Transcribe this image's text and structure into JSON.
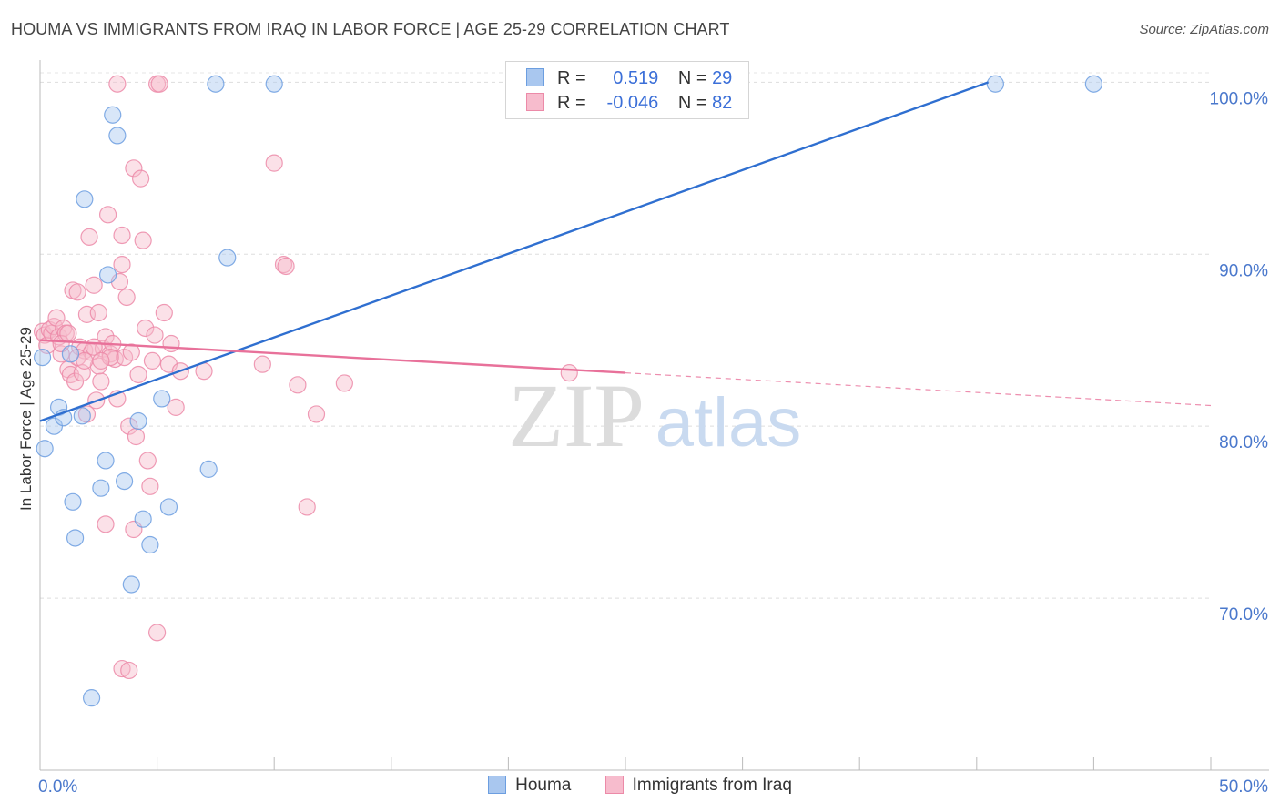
{
  "title": "HOUMA VS IMMIGRANTS FROM IRAQ IN LABOR FORCE | AGE 25-29 CORRELATION CHART",
  "source": "Source: ZipAtlas.com",
  "watermark": {
    "zip": "ZIP",
    "atlas": "atlas"
  },
  "legend_stats": [
    {
      "r_label": "R =",
      "r_value": "0.519",
      "n_label": "N =",
      "n_value": "29",
      "color": "#a9c7ef",
      "border": "#6c9ee0"
    },
    {
      "r_label": "R =",
      "r_value": "-0.046",
      "n_label": "N =",
      "n_value": "82",
      "color": "#f7bccd",
      "border": "#ec8aa8"
    }
  ],
  "bottom_legend": [
    {
      "label": "Houma",
      "color": "#a9c7ef",
      "border": "#6c9ee0"
    },
    {
      "label": "Immigrants from Iraq",
      "color": "#f7bccd",
      "border": "#ec8aa8"
    }
  ],
  "chart_data": {
    "type": "scatter",
    "title": "HOUMA VS IMMIGRANTS FROM IRAQ IN LABOR FORCE | AGE 25-29 CORRELATION CHART",
    "xlabel": "",
    "ylabel": "In Labor Force | Age 25-29",
    "xlim": [
      0,
      50
    ],
    "ylim": [
      60,
      101.5
    ],
    "x_tick_labels": [
      "0.0%",
      "50.0%"
    ],
    "y_ticks": [
      {
        "value": 100,
        "label": "100.0%"
      },
      {
        "value": 90,
        "label": "90.0%"
      },
      {
        "value": 80,
        "label": "80.0%"
      },
      {
        "value": 70,
        "label": "70.0%"
      }
    ],
    "series": [
      {
        "name": "Houma",
        "color": "#6c9ee0",
        "fill": "#a9c7ef",
        "line_color": "#2f6fd0",
        "trend": {
          "x0": 0,
          "y0": 80.3,
          "x1": 40.5,
          "y1": 100.0,
          "solid_to": 40.5
        },
        "points": [
          [
            0.1,
            84.0
          ],
          [
            0.2,
            78.7
          ],
          [
            0.6,
            80.0
          ],
          [
            0.8,
            81.1
          ],
          [
            1.0,
            80.5
          ],
          [
            1.3,
            84.2
          ],
          [
            1.4,
            75.6
          ],
          [
            1.5,
            73.5
          ],
          [
            1.8,
            80.6
          ],
          [
            1.9,
            93.2
          ],
          [
            2.2,
            64.2
          ],
          [
            2.6,
            76.4
          ],
          [
            2.8,
            78.0
          ],
          [
            2.9,
            88.8
          ],
          [
            3.1,
            98.1
          ],
          [
            3.3,
            96.9
          ],
          [
            3.6,
            76.8
          ],
          [
            3.9,
            70.8
          ],
          [
            4.2,
            80.3
          ],
          [
            4.4,
            74.6
          ],
          [
            4.7,
            73.1
          ],
          [
            5.2,
            81.6
          ],
          [
            5.5,
            75.3
          ],
          [
            7.2,
            77.5
          ],
          [
            7.5,
            99.9
          ],
          [
            8.0,
            89.8
          ],
          [
            10.0,
            99.9
          ],
          [
            40.8,
            99.9
          ],
          [
            45.0,
            99.9
          ]
        ]
      },
      {
        "name": "Immigrants from Iraq",
        "color": "#ec8aa8",
        "fill": "#f7bccd",
        "line_color": "#e8719a",
        "trend": {
          "x0": 0,
          "y0": 85.0,
          "x1": 50,
          "y1": 81.2,
          "solid_to": 25.0
        },
        "points": [
          [
            0.1,
            85.5
          ],
          [
            0.2,
            85.3
          ],
          [
            0.3,
            84.7
          ],
          [
            0.4,
            85.6
          ],
          [
            0.5,
            85.4
          ],
          [
            0.6,
            85.8
          ],
          [
            0.7,
            86.3
          ],
          [
            0.8,
            85.2
          ],
          [
            0.9,
            84.2
          ],
          [
            1.0,
            85.7
          ],
          [
            1.1,
            85.4
          ],
          [
            1.2,
            83.3
          ],
          [
            1.3,
            83.0
          ],
          [
            1.4,
            87.9
          ],
          [
            1.5,
            82.6
          ],
          [
            1.6,
            87.8
          ],
          [
            1.7,
            84.6
          ],
          [
            1.8,
            83.1
          ],
          [
            1.9,
            84.4
          ],
          [
            2.0,
            86.5
          ],
          [
            2.1,
            91.0
          ],
          [
            2.2,
            84.3
          ],
          [
            2.3,
            88.2
          ],
          [
            2.4,
            81.5
          ],
          [
            2.5,
            83.5
          ],
          [
            2.5,
            86.6
          ],
          [
            2.6,
            82.6
          ],
          [
            2.7,
            84.5
          ],
          [
            2.8,
            85.2
          ],
          [
            2.9,
            92.3
          ],
          [
            3.0,
            84.2
          ],
          [
            3.1,
            84.8
          ],
          [
            3.2,
            83.9
          ],
          [
            3.3,
            81.6
          ],
          [
            3.4,
            88.4
          ],
          [
            3.5,
            91.1
          ],
          [
            3.5,
            89.4
          ],
          [
            3.6,
            84.0
          ],
          [
            3.7,
            87.5
          ],
          [
            3.8,
            80.0
          ],
          [
            3.9,
            84.3
          ],
          [
            4.0,
            95.0
          ],
          [
            4.1,
            79.4
          ],
          [
            4.2,
            83.0
          ],
          [
            4.3,
            94.4
          ],
          [
            4.4,
            90.8
          ],
          [
            4.5,
            85.7
          ],
          [
            4.6,
            78.0
          ],
          [
            4.7,
            76.5
          ],
          [
            4.8,
            83.8
          ],
          [
            4.9,
            85.3
          ],
          [
            5.0,
            99.9
          ],
          [
            5.1,
            99.9
          ],
          [
            5.3,
            86.6
          ],
          [
            5.5,
            83.6
          ],
          [
            5.6,
            84.8
          ],
          [
            5.8,
            81.1
          ],
          [
            6.0,
            83.2
          ],
          [
            3.3,
            99.9
          ],
          [
            2.8,
            74.3
          ],
          [
            4.0,
            74.0
          ],
          [
            3.5,
            65.9
          ],
          [
            3.8,
            65.8
          ],
          [
            5.0,
            68.0
          ],
          [
            2.0,
            80.7
          ],
          [
            2.3,
            84.6
          ],
          [
            1.6,
            84.0
          ],
          [
            0.9,
            84.8
          ],
          [
            1.2,
            85.4
          ],
          [
            7.0,
            83.2
          ],
          [
            9.5,
            83.6
          ],
          [
            10.0,
            95.3
          ],
          [
            10.4,
            89.4
          ],
          [
            10.5,
            89.3
          ],
          [
            11.0,
            82.4
          ],
          [
            11.4,
            75.3
          ],
          [
            11.8,
            80.7
          ],
          [
            13.0,
            82.5
          ],
          [
            22.6,
            83.1
          ],
          [
            3.0,
            84.0
          ],
          [
            2.6,
            83.8
          ],
          [
            1.9,
            83.8
          ]
        ]
      }
    ],
    "legend_position": "top-center"
  }
}
